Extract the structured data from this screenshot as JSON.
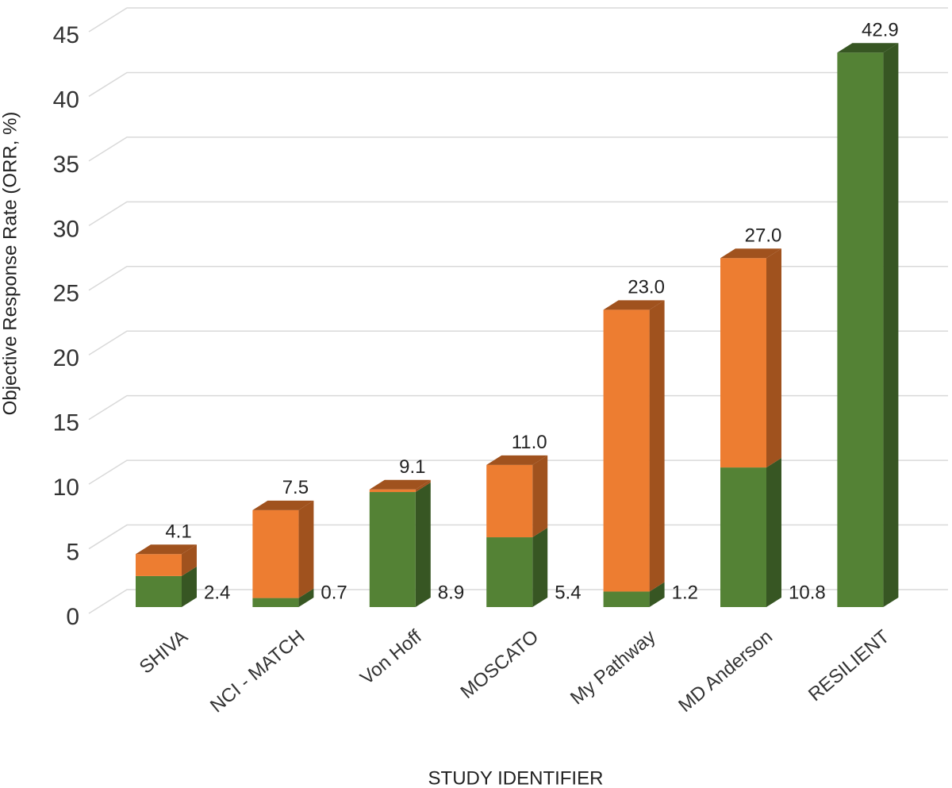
{
  "chart_data": {
    "type": "bar3d_stacked",
    "y_label": "Objective Response Rate (ORR, %)",
    "x_label": "STUDY IDENTIFIER",
    "categories": [
      "SHIVA",
      "NCI - MATCH",
      "Von Hoff",
      "MOSCATO",
      "My Pathway",
      "MD Anderson",
      "RESILIENT"
    ],
    "series": [
      {
        "color": "#548235",
        "side_color": "#375623",
        "values": [
          2.4,
          0.7,
          8.9,
          5.4,
          1.2,
          10.8,
          42.9
        ],
        "value_labels": [
          "2.4",
          "0.7",
          "8.9",
          "5.4",
          "1.2",
          "10.8",
          null
        ]
      },
      {
        "color": "#ed7d31",
        "side_color": "#a0521e",
        "values": [
          1.7,
          6.8,
          0.2,
          5.6,
          21.8,
          16.2,
          0
        ]
      }
    ],
    "total_labels": [
      "4.1",
      "7.5",
      "9.1",
      "11.0",
      "23.0",
      "27.0",
      "42.9"
    ],
    "ylim": [
      0,
      45
    ],
    "yticks": [
      0,
      5,
      10,
      15,
      20,
      25,
      30,
      35,
      40,
      45
    ],
    "grid": true
  }
}
